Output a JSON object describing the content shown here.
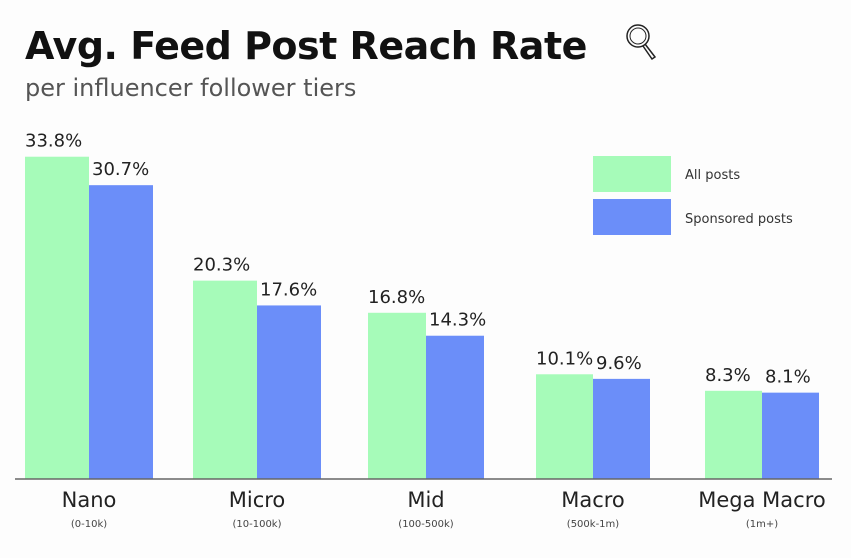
{
  "chart_data": {
    "type": "bar",
    "title": "Avg. Feed Post Reach Rate",
    "subtitle": "per influencer follower tiers",
    "categories": [
      "Nano",
      "Micro",
      "Mid",
      "Macro",
      "Mega Macro"
    ],
    "category_sublabels": [
      "(0-10k)",
      "(10-100k)",
      "(100-500k)",
      "(500k-1m)",
      "(1m+)"
    ],
    "series": [
      {
        "name": "All posts",
        "color": "#a6fbb9",
        "values": [
          33.8,
          20.3,
          16.8,
          10.1,
          8.3
        ],
        "labels": [
          "33.8%",
          "20.3%",
          "16.8%",
          "10.1%",
          "8.3%"
        ]
      },
      {
        "name": "Sponsored posts",
        "color": "#6b8ef9",
        "values": [
          30.7,
          17.6,
          14.3,
          9.6,
          8.1
        ],
        "labels": [
          "30.7%",
          "17.6%",
          "14.3%",
          "9.6%",
          "8.1%"
        ]
      }
    ],
    "ylim": [
      0,
      35
    ],
    "grid": false,
    "legend": "top-right",
    "icon": "magnifying-glass-icon"
  }
}
